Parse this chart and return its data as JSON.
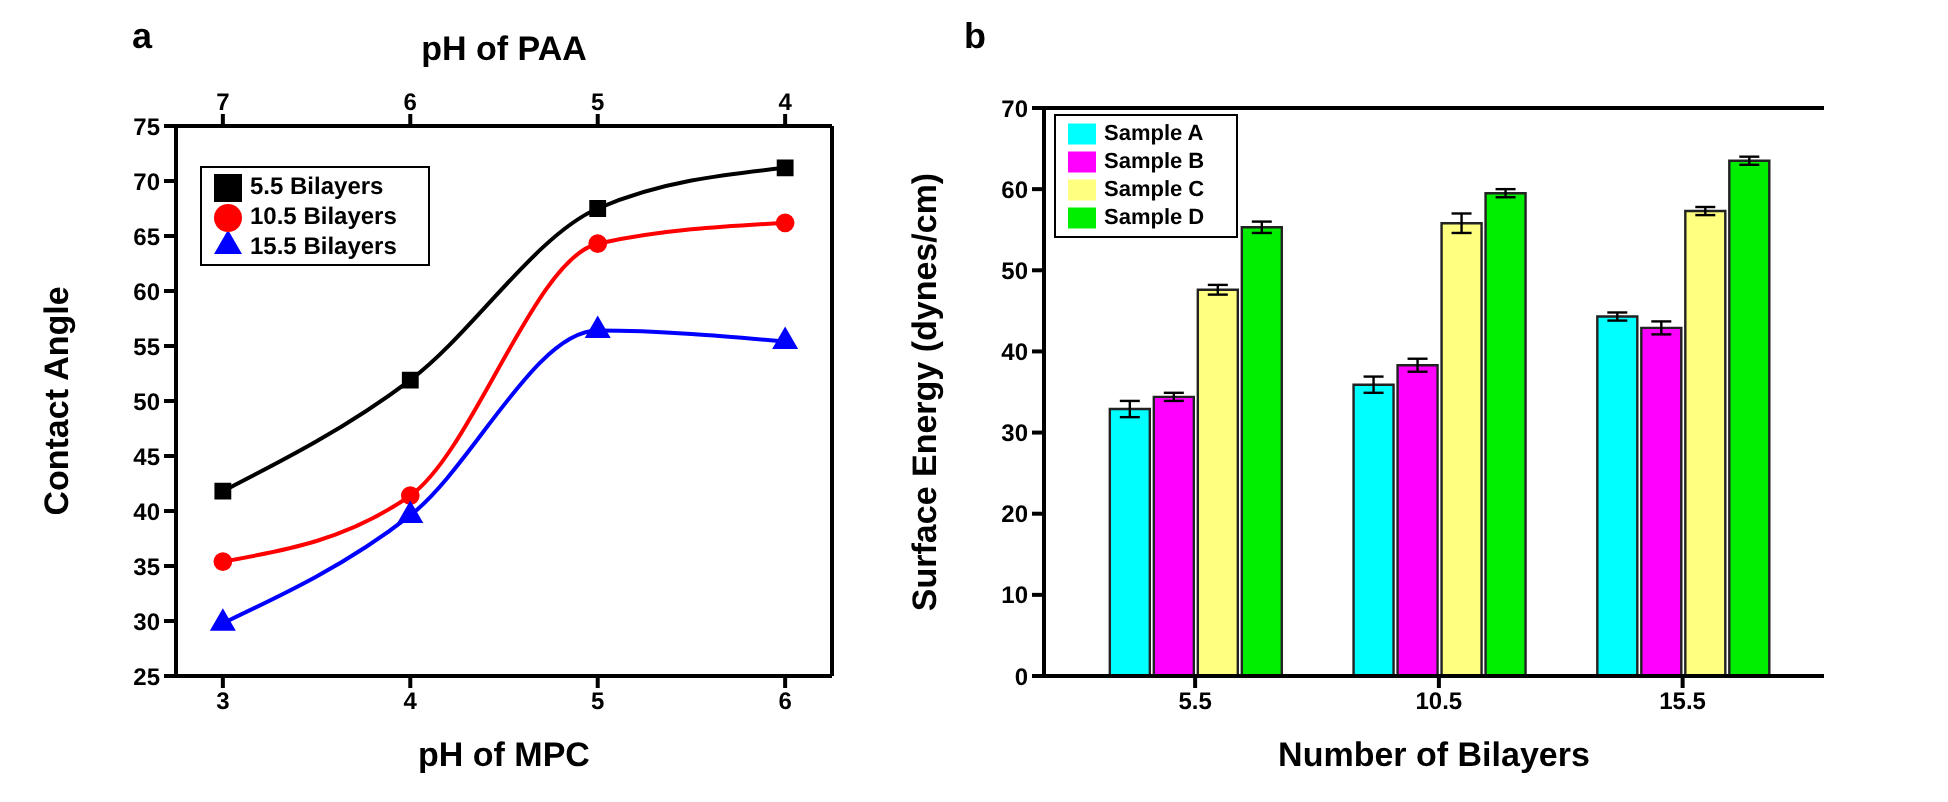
{
  "chart_data": [
    {
      "type": "line",
      "title": "a",
      "xlabel": "pH of MPC",
      "x2label": "pH of PAA",
      "ylabel": "Contact Angle",
      "x": [
        3,
        4,
        5,
        6
      ],
      "xlim": [
        2.75,
        6.25
      ],
      "xticks": [
        3,
        4,
        5,
        6
      ],
      "x2lim": [
        7.25,
        3.75
      ],
      "x2ticks": [
        7,
        6,
        5,
        4
      ],
      "ylim": [
        25,
        75
      ],
      "yticks": [
        25,
        30,
        35,
        40,
        45,
        50,
        55,
        60,
        65,
        70,
        75
      ],
      "legend": "top left",
      "series": [
        {
          "name": "5.5 Bilayers",
          "color": "#000000",
          "marker": "square",
          "values": [
            41.8,
            51.9,
            67.5,
            71.2
          ]
        },
        {
          "name": "10.5 Bilayers",
          "color": "#ff0000",
          "marker": "circle",
          "values": [
            35.4,
            41.4,
            64.3,
            66.2
          ]
        },
        {
          "name": "15.5 Bilayers",
          "color": "#0000ff",
          "marker": "triangle",
          "values": [
            29.8,
            39.6,
            56.4,
            55.4
          ]
        }
      ]
    },
    {
      "type": "bar",
      "title": "b",
      "xlabel": "Number of Bilayers",
      "ylabel": "Surface Energy (dynes/cm)",
      "categories": [
        "5.5",
        "10.5",
        "15.5"
      ],
      "ylim": [
        0,
        70
      ],
      "yticks": [
        0,
        10,
        20,
        30,
        40,
        50,
        60,
        70
      ],
      "legend": "top left",
      "series": [
        {
          "name": "Sample A",
          "color": "#00ffff",
          "values": [
            32.9,
            35.9,
            44.3
          ],
          "errors": [
            1,
            1,
            0.5
          ]
        },
        {
          "name": "Sample B",
          "color": "#ff00ff",
          "values": [
            34.4,
            38.3,
            42.9
          ],
          "errors": [
            0.5,
            0.8,
            0.8
          ]
        },
        {
          "name": "Sample C",
          "color": "#ffff80",
          "values": [
            47.6,
            55.8,
            57.3
          ],
          "errors": [
            0.6,
            1.2,
            0.5
          ]
        },
        {
          "name": "Sample D",
          "color": "#00ee00",
          "values": [
            55.3,
            59.5,
            63.5
          ],
          "errors": [
            0.7,
            0.5,
            0.5
          ]
        }
      ]
    }
  ]
}
